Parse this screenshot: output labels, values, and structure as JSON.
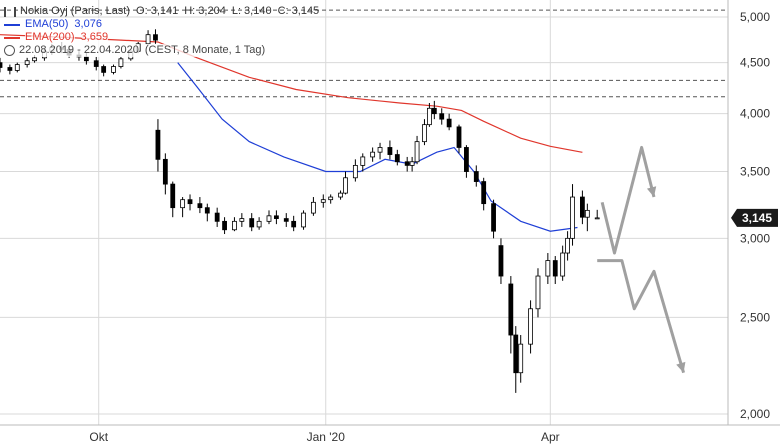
{
  "chart_data": {
    "type": "candlestick",
    "title": "Nokia Oyj (Paris, Last)",
    "ohlc_label": {
      "open": "O: 3,141",
      "high": "H: 3,204",
      "low": "L: 3,140",
      "close": "C: 3,145"
    },
    "date_range_text": "22.08.2019 - 22.04.2020",
    "period_text": "(CEST, 8 Monate, 1 Tag)",
    "last_price": "3,145",
    "y_scale": "log",
    "ylim": [
      1.95,
      5.2
    ],
    "y_ticks": [
      {
        "value": 5.0,
        "label": "5,000"
      },
      {
        "value": 4.5,
        "label": "4,500"
      },
      {
        "value": 4.0,
        "label": "4,000"
      },
      {
        "value": 3.5,
        "label": "3,500"
      },
      {
        "value": 3.0,
        "label": "3,000"
      },
      {
        "value": 2.5,
        "label": "2,500"
      },
      {
        "value": 2.0,
        "label": "2,000"
      }
    ],
    "x_ticks": [
      {
        "date": "2019-10-01",
        "label": "Okt"
      },
      {
        "date": "2020-01-01",
        "label": "Jan '20"
      },
      {
        "date": "2020-04-01",
        "label": "Apr"
      }
    ],
    "xlim": [
      "2019-08-22",
      "2020-06-12"
    ],
    "horizontal_levels": [
      5.08,
      4.32,
      4.16
    ],
    "series": [
      {
        "name": "EMA(50)",
        "value_label": "3,076",
        "color": "#1f3fd6",
        "points": [
          [
            "2019-11-02",
            4.5
          ],
          [
            "2019-11-10",
            4.25
          ],
          [
            "2019-11-20",
            3.95
          ],
          [
            "2019-12-01",
            3.75
          ],
          [
            "2019-12-15",
            3.62
          ],
          [
            "2020-01-01",
            3.5
          ],
          [
            "2020-01-15",
            3.5
          ],
          [
            "2020-01-25",
            3.6
          ],
          [
            "2020-02-05",
            3.56
          ],
          [
            "2020-02-15",
            3.66
          ],
          [
            "2020-02-22",
            3.7
          ],
          [
            "2020-03-01",
            3.5
          ],
          [
            "2020-03-08",
            3.27
          ],
          [
            "2020-03-20",
            3.12
          ],
          [
            "2020-04-01",
            3.05
          ],
          [
            "2020-04-12",
            3.076
          ]
        ]
      },
      {
        "name": "EMA(200)",
        "value_label": "3,659",
        "color": "#e0362c",
        "points": [
          [
            "2019-08-22",
            4.8
          ],
          [
            "2019-09-10",
            4.78
          ],
          [
            "2019-10-10",
            4.74
          ],
          [
            "2019-10-25",
            4.72
          ],
          [
            "2019-11-10",
            4.55
          ],
          [
            "2019-12-01",
            4.35
          ],
          [
            "2019-12-20",
            4.23
          ],
          [
            "2020-01-10",
            4.15
          ],
          [
            "2020-01-31",
            4.1
          ],
          [
            "2020-02-15",
            4.07
          ],
          [
            "2020-02-25",
            4.03
          ],
          [
            "2020-03-05",
            3.93
          ],
          [
            "2020-03-20",
            3.78
          ],
          [
            "2020-04-01",
            3.71
          ],
          [
            "2020-04-14",
            3.659
          ]
        ]
      }
    ],
    "candles": [
      [
        "2019-08-22",
        4.5,
        4.55,
        4.4,
        4.45
      ],
      [
        "2019-08-26",
        4.45,
        4.48,
        4.38,
        4.42
      ],
      [
        "2019-08-29",
        4.42,
        4.5,
        4.4,
        4.48
      ],
      [
        "2019-09-02",
        4.48,
        4.55,
        4.45,
        4.52
      ],
      [
        "2019-09-05",
        4.52,
        4.58,
        4.5,
        4.55
      ],
      [
        "2019-09-09",
        4.55,
        4.65,
        4.52,
        4.62
      ],
      [
        "2019-09-12",
        4.62,
        4.7,
        4.58,
        4.66
      ],
      [
        "2019-09-16",
        4.66,
        4.72,
        4.6,
        4.64
      ],
      [
        "2019-09-19",
        4.64,
        4.68,
        4.55,
        4.58
      ],
      [
        "2019-09-23",
        4.58,
        4.62,
        4.52,
        4.56
      ],
      [
        "2019-09-26",
        4.56,
        4.6,
        4.48,
        4.52
      ],
      [
        "2019-09-30",
        4.52,
        4.56,
        4.42,
        4.46
      ],
      [
        "2019-10-03",
        4.46,
        4.48,
        4.36,
        4.4
      ],
      [
        "2019-10-07",
        4.4,
        4.48,
        4.38,
        4.46
      ],
      [
        "2019-10-10",
        4.46,
        4.56,
        4.44,
        4.54
      ],
      [
        "2019-10-14",
        4.54,
        4.65,
        4.52,
        4.62
      ],
      [
        "2019-10-17",
        4.62,
        4.72,
        4.6,
        4.7
      ],
      [
        "2019-10-21",
        4.7,
        4.85,
        4.68,
        4.8
      ],
      [
        "2019-10-24",
        4.8,
        4.86,
        4.7,
        4.74
      ],
      [
        "2019-10-25",
        3.85,
        3.95,
        3.5,
        3.6
      ],
      [
        "2019-10-28",
        3.6,
        3.65,
        3.32,
        3.4
      ],
      [
        "2019-10-31",
        3.4,
        3.42,
        3.15,
        3.22
      ],
      [
        "2019-11-04",
        3.22,
        3.3,
        3.15,
        3.28
      ],
      [
        "2019-11-07",
        3.28,
        3.32,
        3.2,
        3.25
      ],
      [
        "2019-11-11",
        3.25,
        3.3,
        3.18,
        3.22
      ],
      [
        "2019-11-14",
        3.22,
        3.25,
        3.12,
        3.18
      ],
      [
        "2019-11-18",
        3.18,
        3.22,
        3.08,
        3.12
      ],
      [
        "2019-11-21",
        3.12,
        3.15,
        3.03,
        3.06
      ],
      [
        "2019-11-25",
        3.06,
        3.15,
        3.05,
        3.12
      ],
      [
        "2019-11-28",
        3.12,
        3.18,
        3.08,
        3.14
      ],
      [
        "2019-12-02",
        3.14,
        3.18,
        3.05,
        3.08
      ],
      [
        "2019-12-05",
        3.08,
        3.15,
        3.06,
        3.12
      ],
      [
        "2019-12-09",
        3.12,
        3.2,
        3.1,
        3.16
      ],
      [
        "2019-12-12",
        3.16,
        3.2,
        3.1,
        3.14
      ],
      [
        "2019-12-16",
        3.14,
        3.18,
        3.08,
        3.12
      ],
      [
        "2019-12-19",
        3.12,
        3.16,
        3.05,
        3.08
      ],
      [
        "2019-12-23",
        3.08,
        3.2,
        3.06,
        3.18
      ],
      [
        "2019-12-27",
        3.18,
        3.3,
        3.16,
        3.26
      ],
      [
        "2019-12-31",
        3.26,
        3.32,
        3.22,
        3.28
      ],
      [
        "2020-01-03",
        3.28,
        3.32,
        3.25,
        3.3
      ],
      [
        "2020-01-07",
        3.3,
        3.35,
        3.28,
        3.33
      ],
      [
        "2020-01-09",
        3.33,
        3.5,
        3.32,
        3.45
      ],
      [
        "2020-01-13",
        3.45,
        3.6,
        3.42,
        3.55
      ],
      [
        "2020-01-16",
        3.55,
        3.65,
        3.5,
        3.62
      ],
      [
        "2020-01-20",
        3.62,
        3.7,
        3.58,
        3.66
      ],
      [
        "2020-01-23",
        3.66,
        3.74,
        3.6,
        3.7
      ],
      [
        "2020-01-27",
        3.7,
        3.76,
        3.6,
        3.64
      ],
      [
        "2020-01-30",
        3.64,
        3.68,
        3.55,
        3.58
      ],
      [
        "2020-02-03",
        3.58,
        3.62,
        3.5,
        3.55
      ],
      [
        "2020-02-05",
        3.55,
        3.62,
        3.5,
        3.58
      ],
      [
        "2020-02-07",
        3.58,
        3.8,
        3.56,
        3.75
      ],
      [
        "2020-02-10",
        3.75,
        3.95,
        3.72,
        3.9
      ],
      [
        "2020-02-12",
        3.9,
        4.1,
        3.88,
        4.05
      ],
      [
        "2020-02-14",
        4.05,
        4.12,
        3.95,
        4.0
      ],
      [
        "2020-02-17",
        4.0,
        4.05,
        3.9,
        3.95
      ],
      [
        "2020-02-20",
        3.95,
        4.0,
        3.85,
        3.88
      ],
      [
        "2020-02-24",
        3.88,
        3.9,
        3.65,
        3.7
      ],
      [
        "2020-02-27",
        3.7,
        3.72,
        3.45,
        3.5
      ],
      [
        "2020-03-02",
        3.5,
        3.55,
        3.38,
        3.42
      ],
      [
        "2020-03-05",
        3.42,
        3.45,
        3.2,
        3.25
      ],
      [
        "2020-03-09",
        3.25,
        3.28,
        3.0,
        3.05
      ],
      [
        "2020-03-12",
        2.95,
        3.0,
        2.7,
        2.75
      ],
      [
        "2020-03-16",
        2.7,
        2.75,
        2.3,
        2.4
      ],
      [
        "2020-03-18",
        2.4,
        2.45,
        2.1,
        2.2
      ],
      [
        "2020-03-20",
        2.2,
        2.4,
        2.15,
        2.35
      ],
      [
        "2020-03-24",
        2.35,
        2.6,
        2.3,
        2.55
      ],
      [
        "2020-03-27",
        2.55,
        2.8,
        2.5,
        2.75
      ],
      [
        "2020-03-31",
        2.75,
        2.9,
        2.7,
        2.85
      ],
      [
        "2020-04-03",
        2.85,
        2.88,
        2.7,
        2.75
      ],
      [
        "2020-04-06",
        2.75,
        2.95,
        2.72,
        2.9
      ],
      [
        "2020-04-08",
        2.9,
        3.05,
        2.85,
        3.0
      ],
      [
        "2020-04-10",
        3.0,
        3.4,
        2.95,
        3.3
      ],
      [
        "2020-04-14",
        3.3,
        3.35,
        3.1,
        3.15
      ],
      [
        "2020-04-16",
        3.15,
        3.25,
        3.05,
        3.2
      ],
      [
        "2020-04-20",
        3.141,
        3.204,
        3.14,
        3.145
      ]
    ],
    "annotation_arrows": [
      {
        "points": [
          [
            "2020-04-22",
            3.26
          ],
          [
            "2020-04-27",
            2.9
          ],
          [
            "2020-05-08",
            3.7
          ],
          [
            "2020-05-13",
            3.3
          ]
        ],
        "color": "#a0a0a0"
      },
      {
        "points": [
          [
            "2020-04-20",
            2.85
          ],
          [
            "2020-04-30",
            2.85
          ],
          [
            "2020-05-05",
            2.55
          ],
          [
            "2020-05-13",
            2.78
          ],
          [
            "2020-05-25",
            2.2
          ]
        ],
        "color": "#a0a0a0"
      }
    ],
    "colors": {
      "up": "#ffffff",
      "down": "#000000",
      "grid": "#d9d9d9",
      "level": "#555555",
      "badge": "#1a1a1a"
    }
  }
}
